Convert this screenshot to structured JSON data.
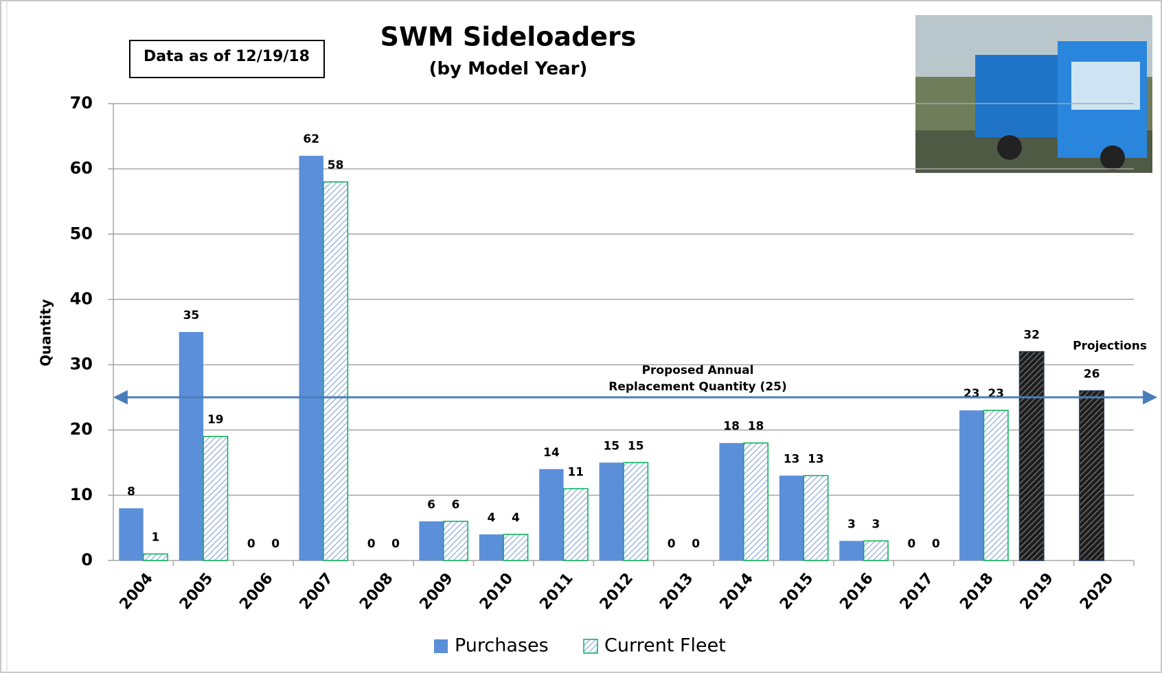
{
  "chart_data": {
    "type": "bar",
    "title": "SWM Sideloaders",
    "subtitle": "(by Model Year)",
    "note": "Data as of 12/19/18",
    "y_label": "Quantity",
    "categories": [
      "2004",
      "2005",
      "2006",
      "2007",
      "2008",
      "2009",
      "2010",
      "2011",
      "2012",
      "2013",
      "2014",
      "2015",
      "2016",
      "2017",
      "2018",
      "2019",
      "2020"
    ],
    "series": [
      {
        "name": "Purchases",
        "color": "#5b8fd9",
        "values": [
          8,
          35,
          0,
          62,
          0,
          6,
          4,
          14,
          15,
          0,
          18,
          13,
          3,
          0,
          23,
          null,
          null
        ]
      },
      {
        "name": "Current Fleet",
        "color": "#00b050",
        "values": [
          1,
          19,
          0,
          58,
          0,
          6,
          4,
          11,
          15,
          0,
          18,
          13,
          3,
          0,
          23,
          null,
          null
        ]
      },
      {
        "name": "Projections",
        "color": "#1e1e1e",
        "values": [
          null,
          null,
          null,
          null,
          null,
          null,
          null,
          null,
          null,
          null,
          null,
          null,
          null,
          null,
          null,
          32,
          26
        ]
      }
    ],
    "legend_series": [
      0,
      1
    ],
    "reference_line": {
      "value": 25,
      "color": "#4a7ebb",
      "label": [
        "Proposed Annual",
        "Replacement Quantity (25)"
      ]
    },
    "ylim": [
      0,
      70
    ],
    "yticks": [
      0,
      10,
      20,
      30,
      40,
      50,
      60,
      70
    ],
    "grid": true
  }
}
